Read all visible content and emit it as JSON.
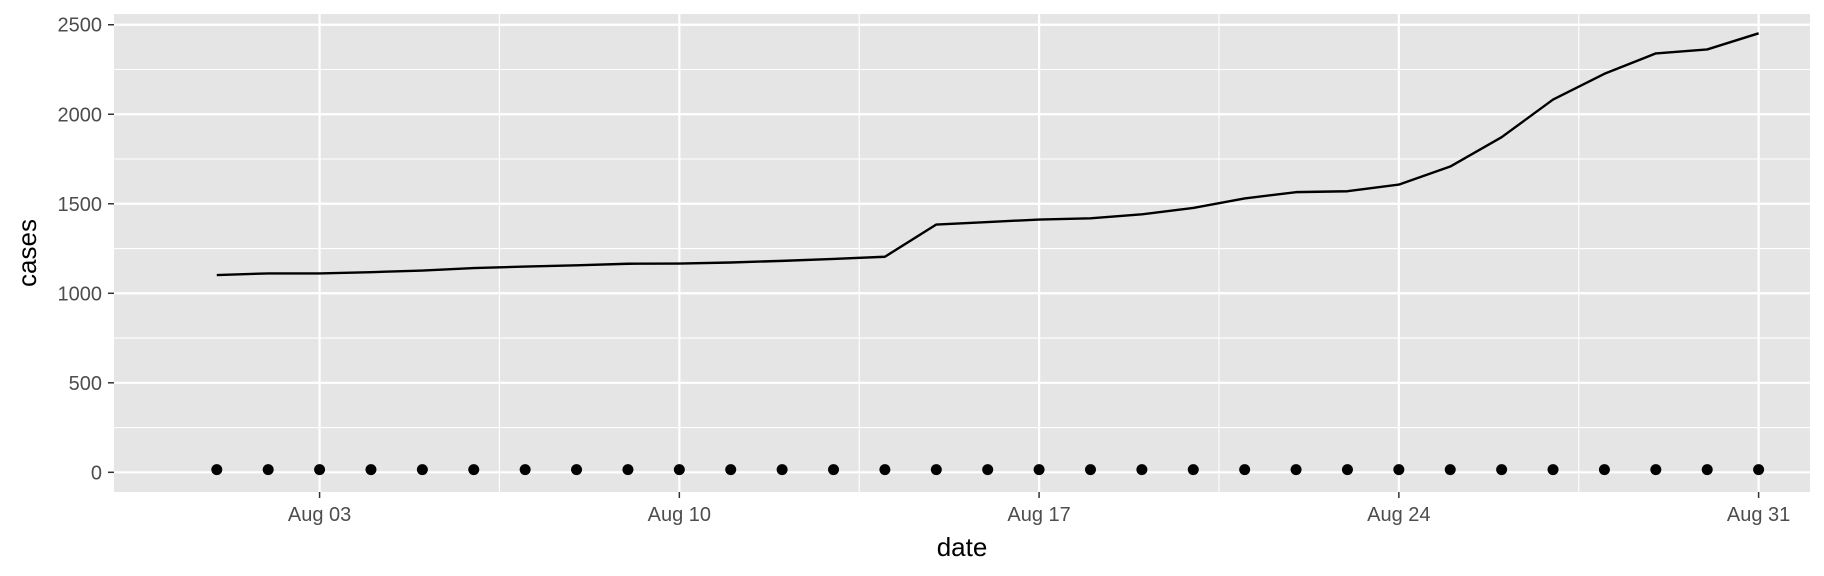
{
  "chart_data": {
    "type": "line",
    "title": "",
    "xlabel": "date",
    "ylabel": "cases",
    "x_tick_labels": [
      "Aug 03",
      "Aug 10",
      "Aug 17",
      "Aug 24",
      "Aug 31"
    ],
    "x_tick_dates": [
      "2020-08-03",
      "2020-08-10",
      "2020-08-17",
      "2020-08-24",
      "2020-08-31"
    ],
    "y_ticks": [
      0,
      500,
      1000,
      1500,
      2000,
      2500
    ],
    "ylim": [
      -110,
      2560
    ],
    "xlim": [
      "2020-07-30",
      "2020-09-01"
    ],
    "grid": true,
    "legend": "none",
    "colors": {
      "panel": "#e5e5e5",
      "grid": "#ffffff",
      "line": "#000000",
      "points": "#000000",
      "tick_text": "#4d4d4d"
    },
    "series": [
      {
        "type": "line",
        "x": [
          "2020-08-01",
          "2020-08-02",
          "2020-08-03",
          "2020-08-04",
          "2020-08-05",
          "2020-08-06",
          "2020-08-07",
          "2020-08-08",
          "2020-08-09",
          "2020-08-10",
          "2020-08-11",
          "2020-08-12",
          "2020-08-13",
          "2020-08-14",
          "2020-08-15",
          "2020-08-16",
          "2020-08-17",
          "2020-08-18",
          "2020-08-19",
          "2020-08-20",
          "2020-08-21",
          "2020-08-22",
          "2020-08-23",
          "2020-08-24",
          "2020-08-25",
          "2020-08-26",
          "2020-08-27",
          "2020-08-28",
          "2020-08-29",
          "2020-08-30",
          "2020-08-31"
        ],
        "values": [
          1102,
          1111,
          1111,
          1118,
          1127,
          1141,
          1149,
          1156,
          1165,
          1166,
          1172,
          1181,
          1192,
          1204,
          1384,
          1398,
          1412,
          1419,
          1441,
          1477,
          1530,
          1565,
          1570,
          1607,
          1708,
          1872,
          2082,
          2226,
          2340,
          2362,
          2452
        ]
      },
      {
        "type": "scatter",
        "x": [
          "2020-08-01",
          "2020-08-02",
          "2020-08-03",
          "2020-08-04",
          "2020-08-05",
          "2020-08-06",
          "2020-08-07",
          "2020-08-08",
          "2020-08-09",
          "2020-08-10",
          "2020-08-11",
          "2020-08-12",
          "2020-08-13",
          "2020-08-14",
          "2020-08-15",
          "2020-08-16",
          "2020-08-17",
          "2020-08-18",
          "2020-08-19",
          "2020-08-20",
          "2020-08-21",
          "2020-08-22",
          "2020-08-23",
          "2020-08-24",
          "2020-08-25",
          "2020-08-26",
          "2020-08-27",
          "2020-08-28",
          "2020-08-29",
          "2020-08-30",
          "2020-08-31"
        ],
        "values": [
          15,
          15,
          15,
          15,
          15,
          15,
          15,
          15,
          15,
          15,
          15,
          15,
          15,
          15,
          15,
          15,
          15,
          15,
          15,
          15,
          15,
          15,
          15,
          15,
          15,
          15,
          15,
          15,
          15,
          15,
          15
        ]
      }
    ]
  }
}
